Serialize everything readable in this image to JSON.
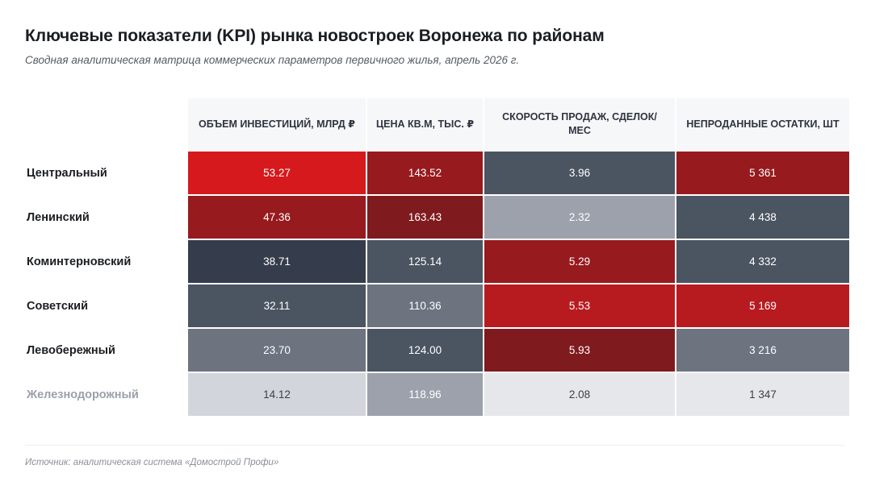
{
  "title": "Ключевые показатели (KPI) рынка новостроек Воронежа по районам",
  "subtitle": "Сводная аналитическая матрица коммерческих параметров первичного жилья, апрель 2026 г.",
  "source": "Источник: аналитическая система «Домострой Профи»",
  "chart_data": {
    "type": "heatmap",
    "title": "Ключевые показатели (KPI) рынка новостроек Воронежа по районам",
    "columns": [
      "ОБЪЕМ ИНВЕСТИЦИЙ, МЛРД ₽",
      "ЦЕНА КВ.М, ТЫС. ₽",
      "СКОРОСТЬ ПРОДАЖ, СДЕЛОК/МЕС",
      "НЕПРОДАННЫЕ ОСТАТКИ, ШТ"
    ],
    "rows": [
      {
        "label": "Центральный",
        "values": [
          "53.27",
          "143.52",
          "3.96",
          "5 361"
        ],
        "colors": [
          "#d6191c",
          "#971a1e",
          "#4b5461",
          "#971a1e"
        ]
      },
      {
        "label": "Ленинский",
        "values": [
          "47.36",
          "163.43",
          "2.32",
          "4 438"
        ],
        "colors": [
          "#971a1e",
          "#7f1a1e",
          "#9ca1ab",
          "#4b5461"
        ]
      },
      {
        "label": "Коминтерновский",
        "values": [
          "38.71",
          "125.14",
          "5.29",
          "4 332"
        ],
        "colors": [
          "#353c4b",
          "#4b5461",
          "#971a1e",
          "#4b5461"
        ]
      },
      {
        "label": "Советский",
        "values": [
          "32.11",
          "110.36",
          "5.53",
          "5 169"
        ],
        "colors": [
          "#4b5461",
          "#6d737f",
          "#b81b1f",
          "#b81b1f"
        ]
      },
      {
        "label": "Левобережный",
        "values": [
          "23.70",
          "124.00",
          "5.93",
          "3 216"
        ],
        "colors": [
          "#6d737f",
          "#4b5461",
          "#7f1a1e",
          "#6d737f"
        ]
      },
      {
        "label": "Железнодорожный",
        "values": [
          "14.12",
          "118.96",
          "2.08",
          "1 347"
        ],
        "colors": [
          "#d3d5dc",
          "#9ca1ab",
          "#e6e7eb",
          "#e6e7eb"
        ]
      }
    ],
    "legend": "none",
    "grid": false
  }
}
